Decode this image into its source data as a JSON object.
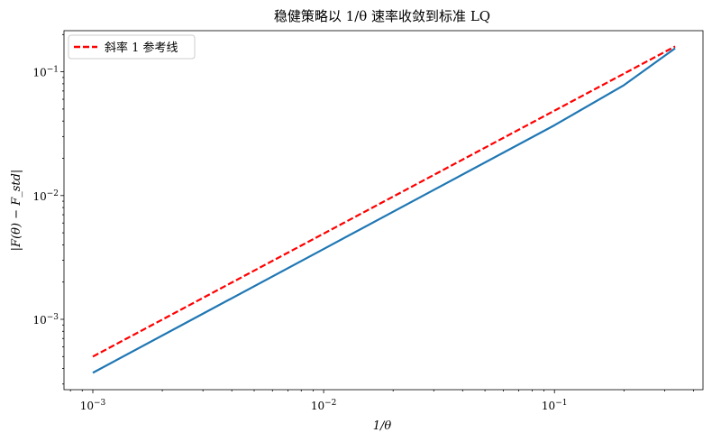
{
  "chart_data": {
    "type": "line",
    "title": "稳健策略以 1/θ 速率收敛到标准 LQ",
    "xlabel": "1/θ",
    "ylabel": "|F(θ) − F_std|",
    "xscale": "log",
    "yscale": "log",
    "xlim": [
      0.00075,
      0.44
    ],
    "ylim": [
      0.00027,
      0.215
    ],
    "x_ticks": [
      {
        "base": "10",
        "exp": "−3",
        "value": 0.001
      },
      {
        "base": "10",
        "exp": "−2",
        "value": 0.01
      },
      {
        "base": "10",
        "exp": "−1",
        "value": 0.1
      }
    ],
    "y_ticks": [
      {
        "base": "10",
        "exp": "−3",
        "value": 0.001
      },
      {
        "base": "10",
        "exp": "−2",
        "value": 0.01
      },
      {
        "base": "10",
        "exp": "−1",
        "value": 0.1
      }
    ],
    "grid": false,
    "legend_position": "top-left",
    "series": [
      {
        "color": "#1f77b4",
        "style": "solid",
        "x": [
          0.001,
          0.003,
          0.01,
          0.03,
          0.1,
          0.2,
          0.3333
        ],
        "y": [
          0.00037,
          0.00111,
          0.0037,
          0.0111,
          0.037,
          0.078,
          0.155
        ]
      },
      {
        "name": "斜率 1 参考线",
        "color": "#ff0000",
        "style": "dashed",
        "x": [
          0.001,
          0.3333
        ],
        "y": [
          0.0005,
          0.1605
        ]
      }
    ]
  }
}
